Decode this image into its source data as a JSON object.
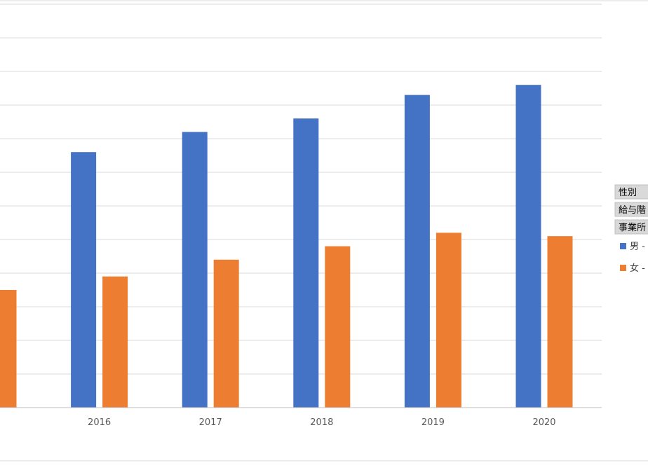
{
  "pivot_fields": [
    "性別",
    "給与階",
    "事業所"
  ],
  "legend": {
    "items": [
      {
        "label": "男 -",
        "color": "#4472c4"
      },
      {
        "label": "女 -",
        "color": "#ed7d31"
      }
    ]
  },
  "chart_data": {
    "type": "bar",
    "title": "",
    "xlabel": "",
    "ylabel": "",
    "categories": [
      "",
      "2016",
      "2017",
      "2018",
      "2019",
      "2020"
    ],
    "series": [
      {
        "color": "#4472c4",
        "values": [
          null,
          7.6,
          8.2,
          8.6,
          9.3,
          9.6
        ]
      },
      {
        "color": "#ed7d31",
        "values": [
          3.5,
          3.9,
          4.4,
          4.8,
          5.2,
          5.1
        ]
      }
    ],
    "ylim": [
      0,
      12
    ],
    "grid": true,
    "legend_position": "right"
  }
}
